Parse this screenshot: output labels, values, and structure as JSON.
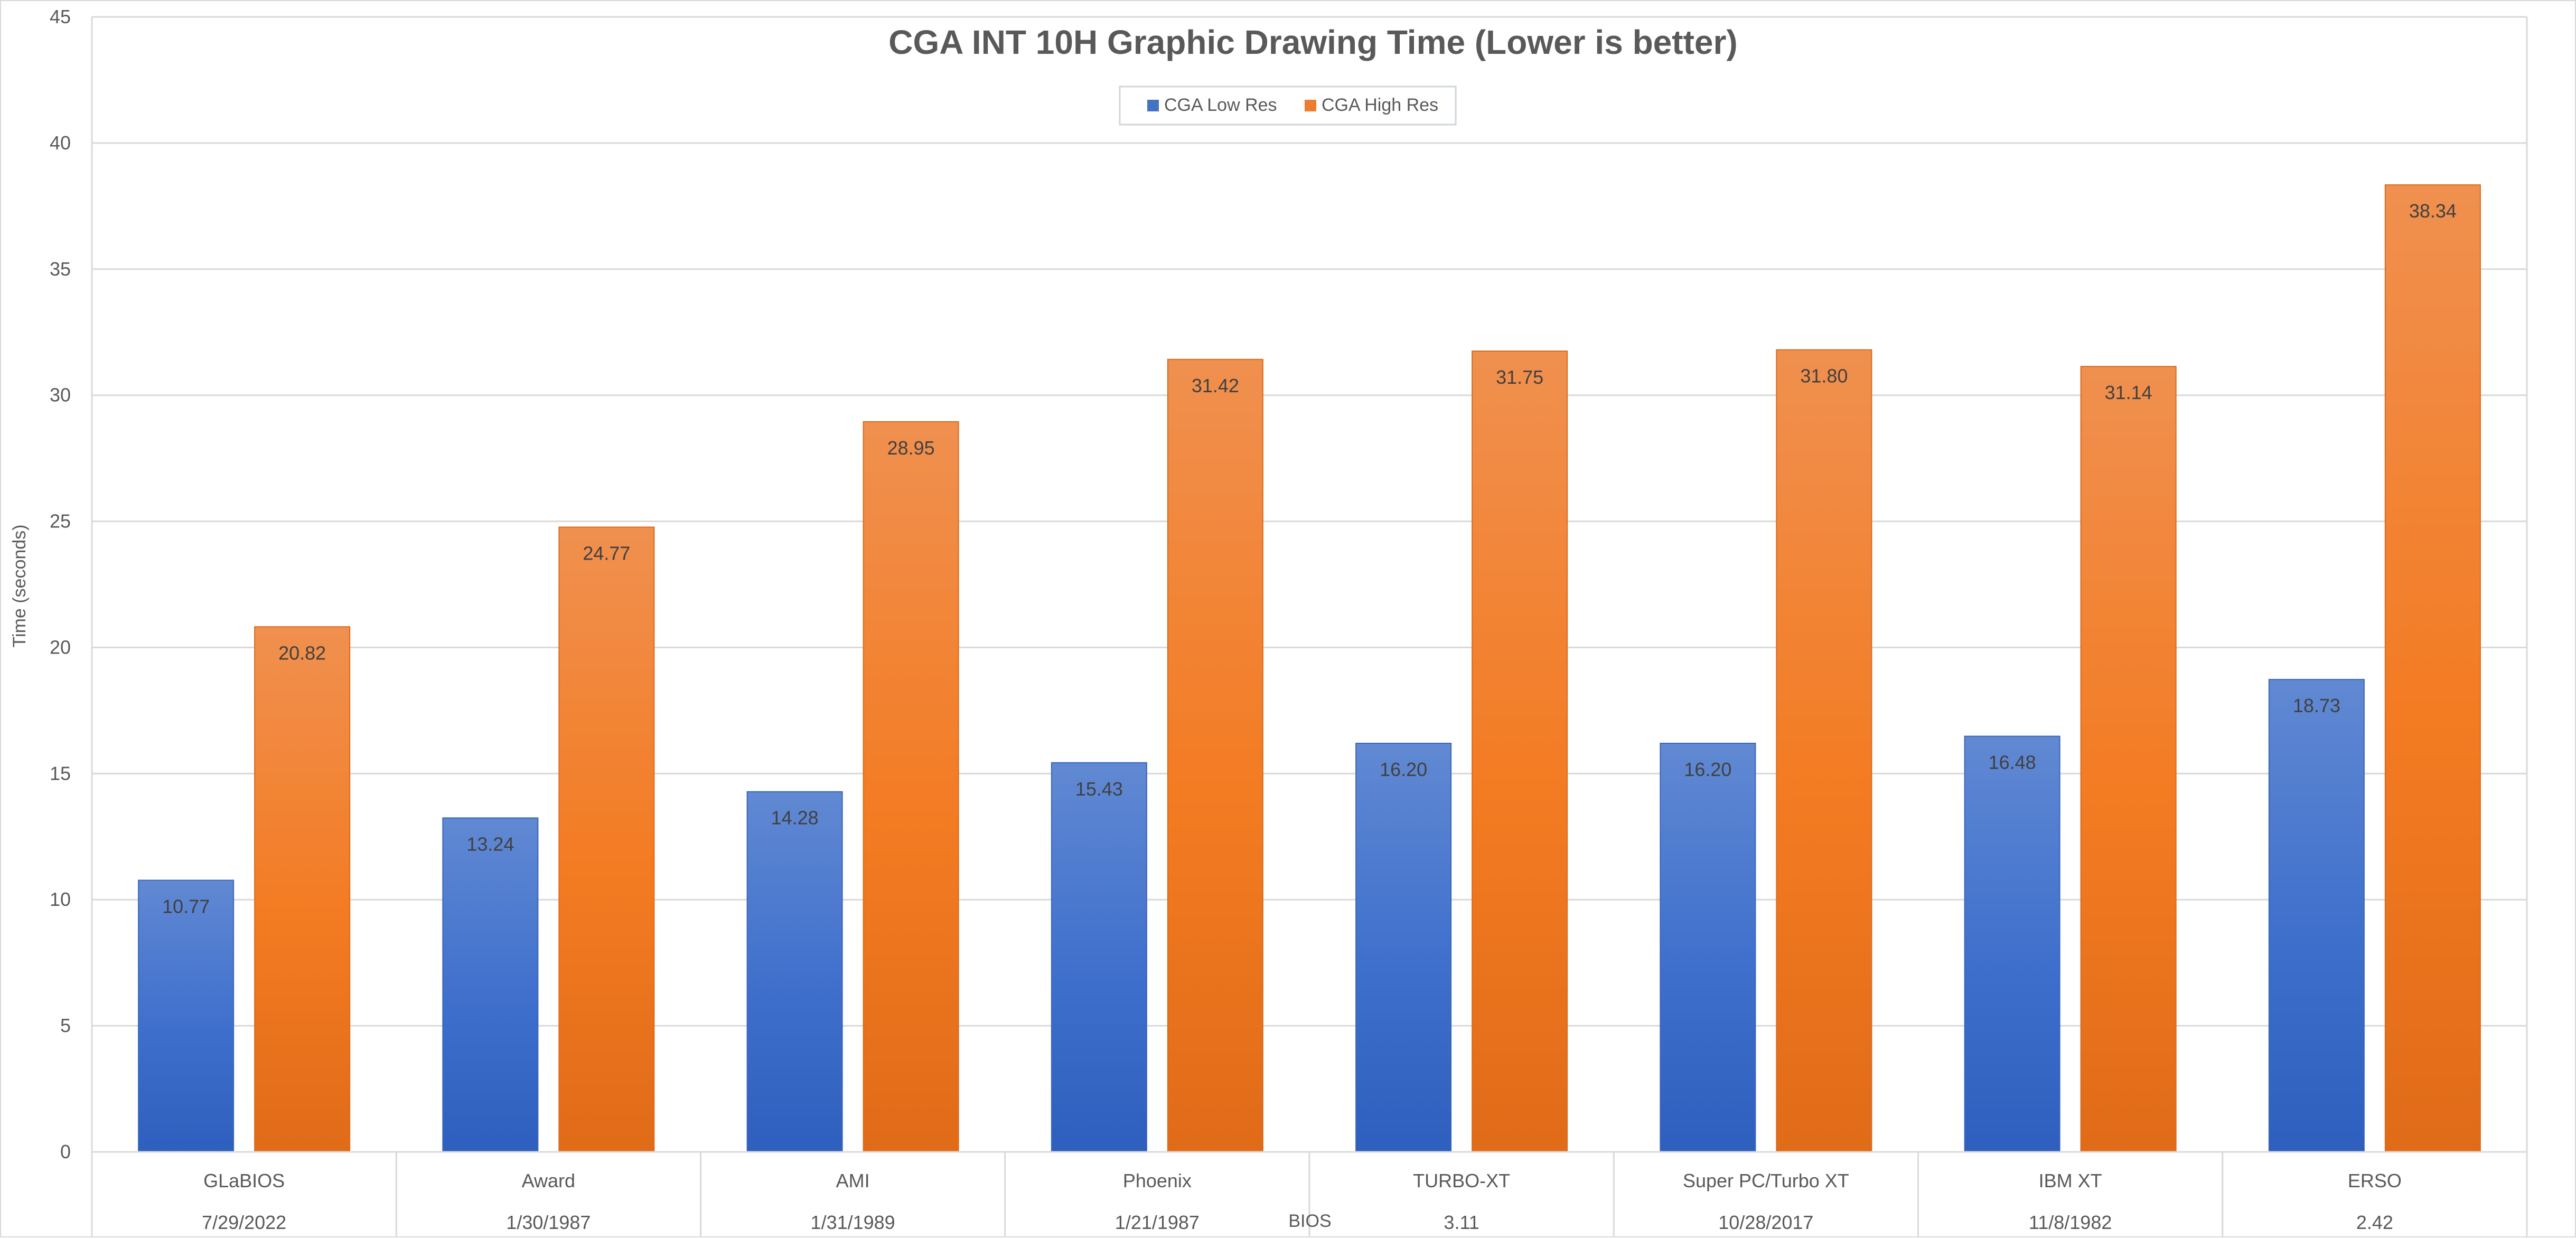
{
  "chart_data": {
    "type": "bar",
    "title": "CGA INT 10H Graphic Drawing Time (Lower is better)",
    "xlabel": "BIOS",
    "ylabel": "Time (seconds)",
    "ylim": [
      0,
      45
    ],
    "y_ticks": [
      0,
      5,
      10,
      15,
      20,
      25,
      30,
      35,
      40,
      45
    ],
    "grid": true,
    "legend_position": "top-center",
    "categories": [
      {
        "name": "GLaBIOS",
        "date": "7/29/2022"
      },
      {
        "name": "Award",
        "date": "1/30/1987"
      },
      {
        "name": "AMI",
        "date": "1/31/1989"
      },
      {
        "name": "Phoenix",
        "date": "1/21/1987"
      },
      {
        "name": "TURBO-XT",
        "date": "3.11"
      },
      {
        "name": "Super PC/Turbo XT",
        "date": "10/28/2017"
      },
      {
        "name": "IBM XT",
        "date": "11/8/1982"
      },
      {
        "name": "ERSO",
        "date": "2.42"
      }
    ],
    "series": [
      {
        "name": "CGA Low Res",
        "color": "#4472C4",
        "values": [
          10.77,
          13.24,
          14.28,
          15.43,
          16.2,
          16.2,
          16.48,
          18.73
        ],
        "labels": [
          "10.77",
          "13.24",
          "14.28",
          "15.43",
          "16.20",
          "16.20",
          "16.48",
          "18.73"
        ]
      },
      {
        "name": "CGA High Res",
        "color": "#ED7D31",
        "values": [
          20.82,
          24.77,
          28.95,
          31.42,
          31.75,
          31.8,
          31.14,
          38.34
        ],
        "labels": [
          "20.82",
          "24.77",
          "28.95",
          "31.42",
          "31.75",
          "31.80",
          "31.14",
          "38.34"
        ]
      }
    ]
  }
}
